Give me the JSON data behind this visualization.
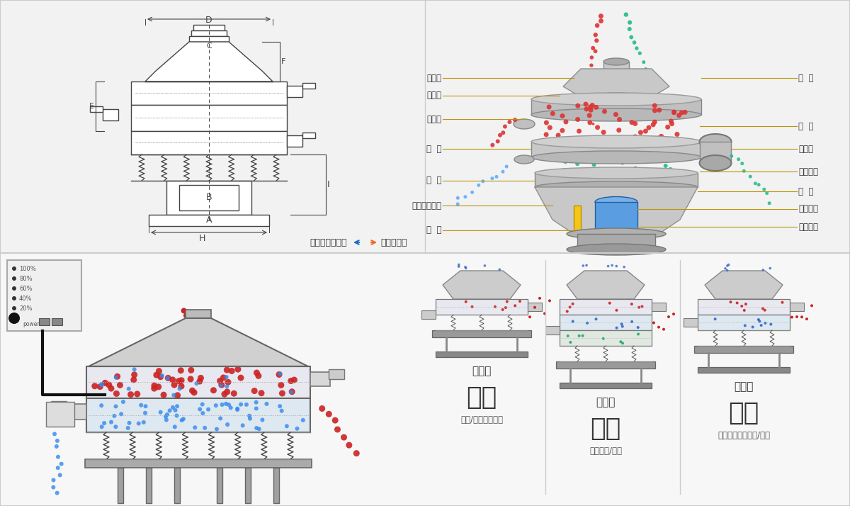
{
  "bg_color": "#ffffff",
  "border_color": "#cccccc",
  "top_bg": "#f0f0f0",
  "bottom_bg": "#f5f5f5",
  "drawing_color": "#555555",
  "label_color": "#333333",
  "line_color_gold": "#b8960a",
  "left_labels": [
    "进料口",
    "防尘盖",
    "出料口",
    "束  环",
    "弹  簧",
    "运输固定螺栓",
    "机  座"
  ],
  "right_labels": [
    "筛  网",
    "网  架",
    "加重块",
    "上部重锤",
    "筛  盘",
    "振动电机",
    "下部重锤"
  ],
  "dim_labels": [
    "A",
    "B",
    "C",
    "D",
    "E",
    "F",
    "H",
    "I"
  ],
  "bottom_labels": [
    "单层式",
    "三层式",
    "双层式"
  ],
  "bottom_big_labels": [
    "分级",
    "过滤",
    "除杂"
  ],
  "bottom_sub_labels": [
    "颗粒/粉末准确分级",
    "去除异物/结块",
    "去除液体中的颗粒/异物"
  ],
  "caption_left": "外形尺寸示意图",
  "caption_right": "结构示意图"
}
